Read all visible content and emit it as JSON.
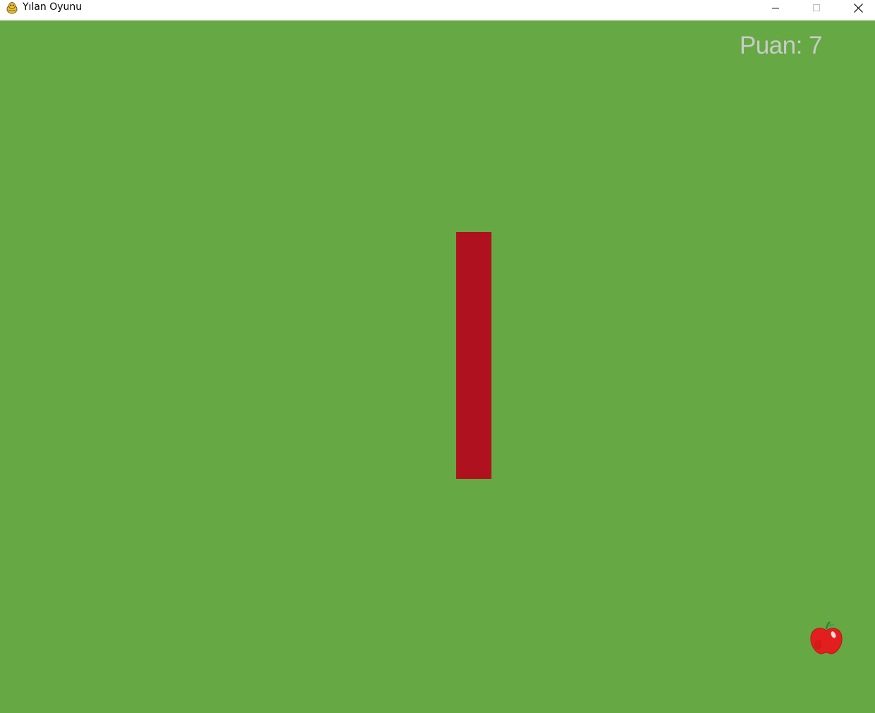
{
  "window": {
    "title": "Yılan Oyunu",
    "app_icon": "pygame-snake-icon"
  },
  "controls": {
    "minimize": "minimize-icon",
    "maximize": "maximize-icon",
    "close": "close-icon"
  },
  "game": {
    "background_color": "#66a843",
    "score_text": "Puan: 7",
    "score_value": 7,
    "snake_color": "#b0111e",
    "food": "apple-icon"
  }
}
